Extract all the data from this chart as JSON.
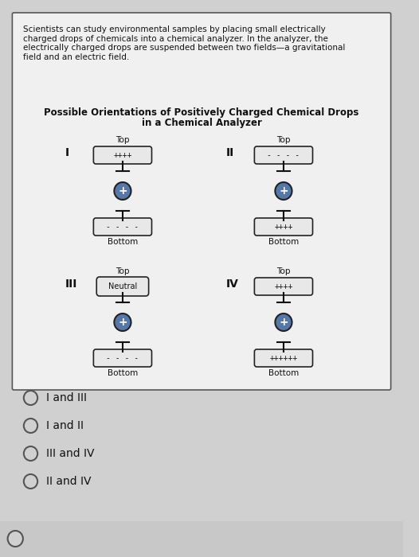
{
  "bg_color": "#d0d0d0",
  "panel_bg": "#e8e8e8",
  "text_color": "#111111",
  "intro_text": "Scientists can study environmental samples by placing small electrically\ncharged drops of chemicals into a chemical analyzer. In the analyzer, the\nelectrically charged drops are suspended between two fields—a gravitational\nfield and an electric field.",
  "title_line1": "Possible Orientations of Positively Charged Chemical Drops",
  "title_line2": "in a Chemical Analyzer",
  "quadrants": [
    {
      "label": "I",
      "top_charges": "++++",
      "bottom_charges": "- - - -",
      "drop_label": "+"
    },
    {
      "label": "II",
      "top_charges": "- - - -",
      "bottom_charges": "++++",
      "drop_label": "+"
    },
    {
      "label": "III",
      "top_charges": "Neutral",
      "bottom_charges": "- - - -",
      "drop_label": "+"
    },
    {
      "label": "IV",
      "top_charges": "++++",
      "bottom_charges": "++++++",
      "drop_label": "+"
    }
  ],
  "options": [
    "I and III",
    "I and II",
    "III and IV",
    "II and IV"
  ],
  "radio_color": "#cccccc"
}
